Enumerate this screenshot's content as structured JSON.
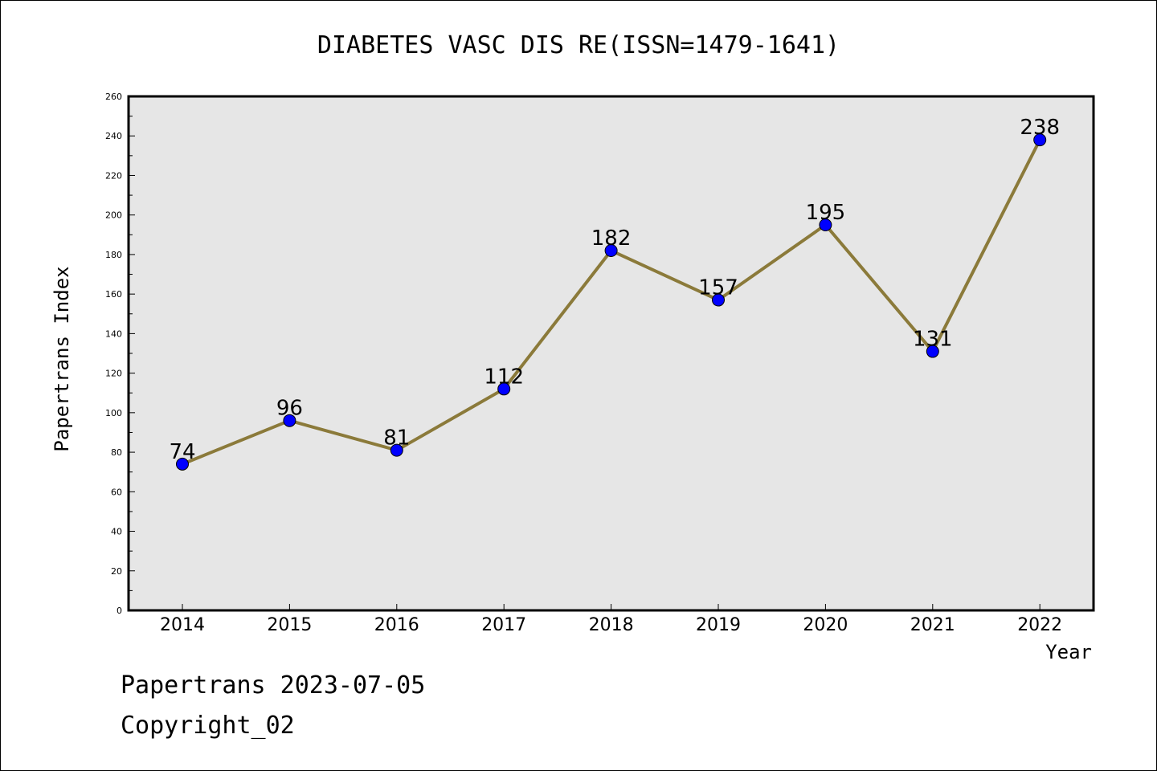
{
  "chart_data": {
    "type": "line",
    "title": "DIABETES VASC DIS RE(ISSN=1479-1641)",
    "xlabel": "Year",
    "ylabel": "Papertrans Index",
    "categories": [
      "2014",
      "2015",
      "2016",
      "2017",
      "2018",
      "2019",
      "2020",
      "2021",
      "2022"
    ],
    "values": [
      74,
      96,
      81,
      112,
      182,
      157,
      195,
      131,
      238
    ],
    "ylim": [
      0,
      260
    ],
    "yticks": [
      "0",
      "20",
      "40",
      "60",
      "80",
      "100",
      "120",
      "140",
      "160",
      "180",
      "200",
      "220",
      "240",
      "260"
    ],
    "grid": false,
    "legend": "none",
    "colors": {
      "line": "#8b7a3a",
      "marker": "#0000ff",
      "plot_background": "#e6e6e6"
    }
  },
  "footer": {
    "line1": "Papertrans 2023-07-05",
    "line2": "Copyright_02"
  }
}
